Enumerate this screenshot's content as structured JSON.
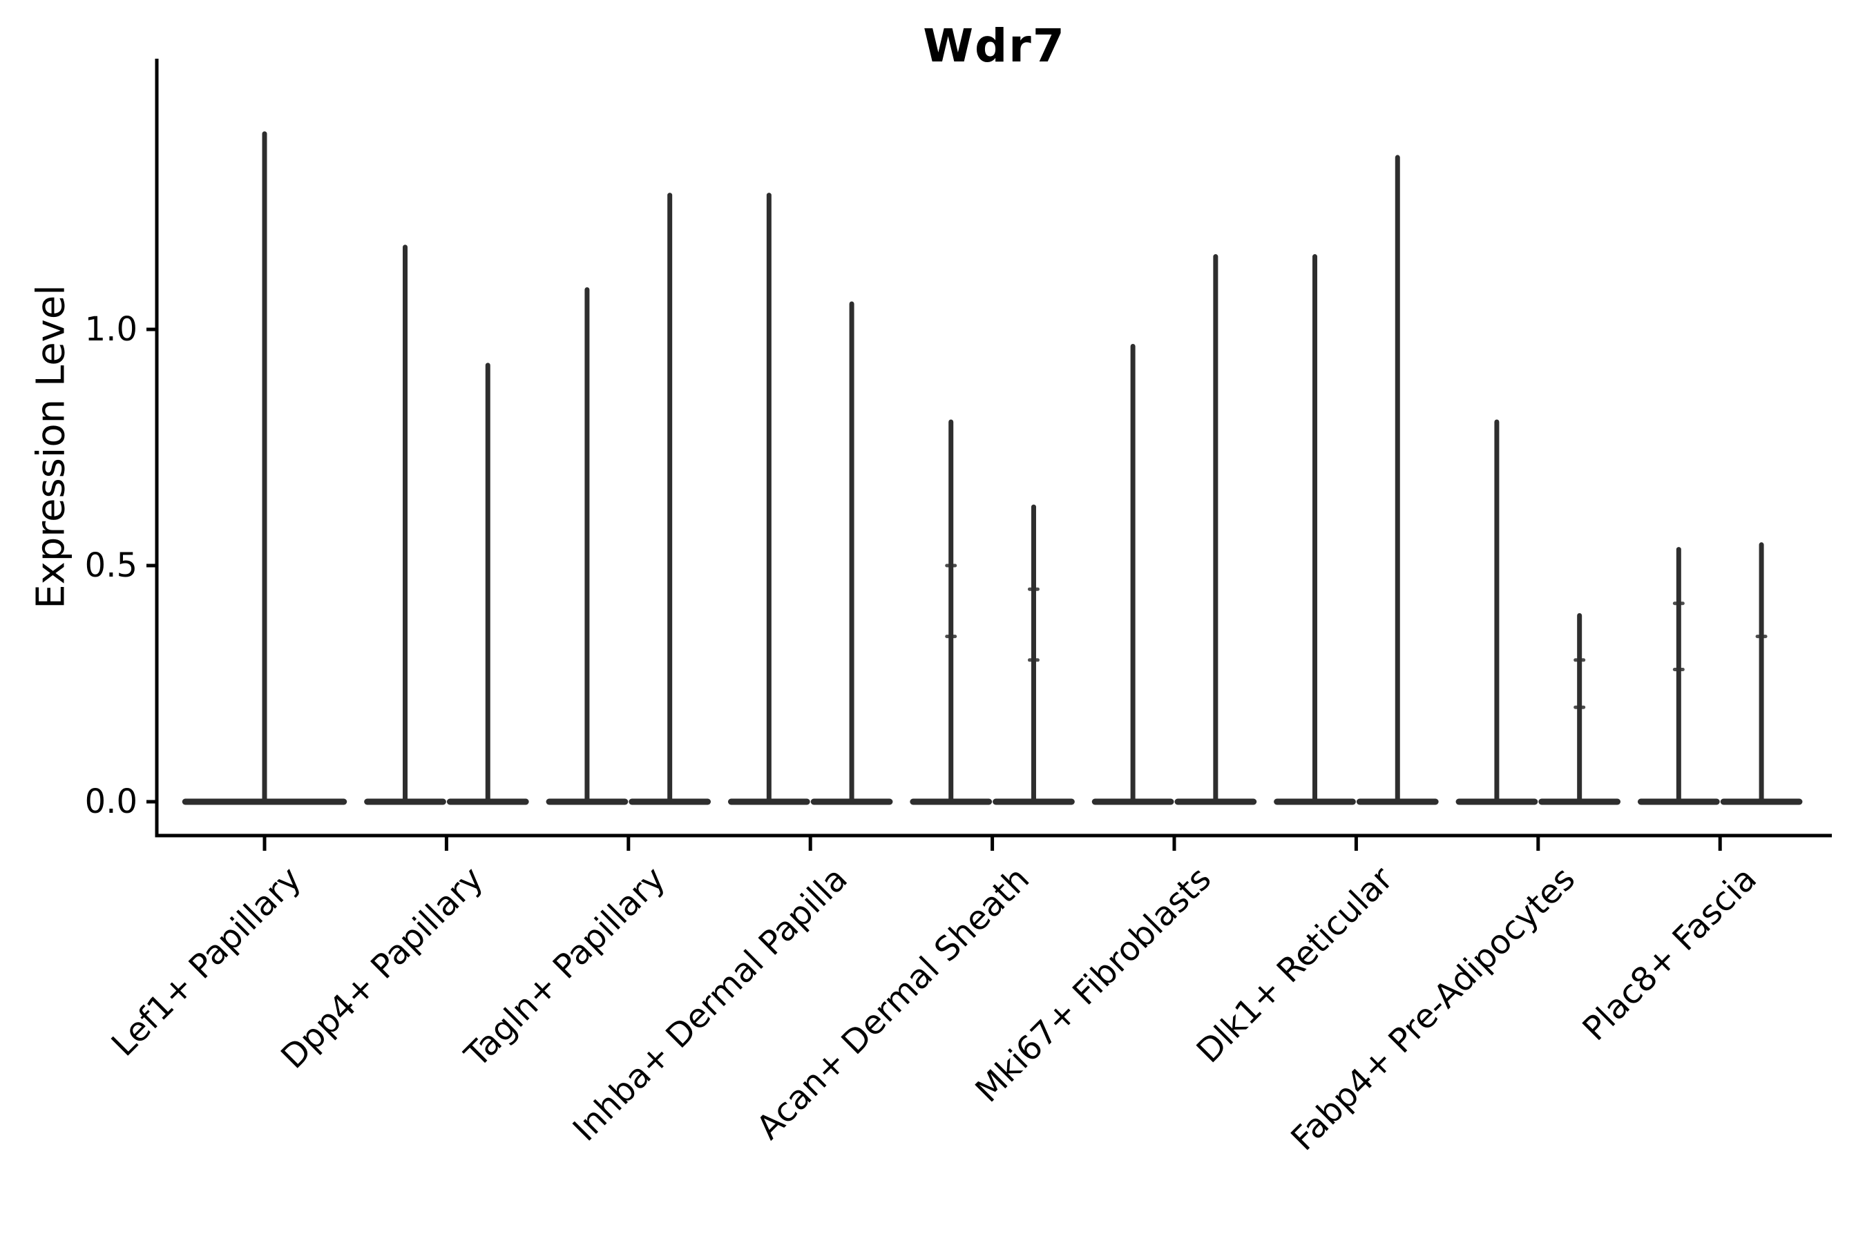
{
  "chart_data": {
    "type": "violin",
    "title": "Wdr7",
    "ylabel": "Expression Level",
    "xlabel": "",
    "grid": false,
    "legend": "none",
    "ylim": [
      -0.07,
      1.57
    ],
    "yticks": [
      {
        "value": 0.0,
        "label": "0.0"
      },
      {
        "value": 0.5,
        "label": "0.5"
      },
      {
        "value": 1.0,
        "label": "1.0"
      }
    ],
    "x_axis_note": "9 cell-type categories; first category has one full-width violin, all others have two side-by-side violins; violins are collapsed to a flat bar at 0 with a thin density spike up to the max expression value",
    "categories": [
      {
        "label": "Lef1+ Papillary",
        "violins": [
          {
            "max": 1.42,
            "points": []
          }
        ]
      },
      {
        "label": "Dpp4+ Papillary",
        "violins": [
          {
            "max": 1.18,
            "points": []
          },
          {
            "max": 0.93,
            "points": []
          }
        ]
      },
      {
        "label": "Tagln+ Papillary",
        "violins": [
          {
            "max": 1.09,
            "points": []
          },
          {
            "max": 1.29,
            "points": []
          }
        ]
      },
      {
        "label": "Inhba+ Dermal Papilla",
        "violins": [
          {
            "max": 1.29,
            "points": []
          },
          {
            "max": 1.06,
            "points": []
          }
        ]
      },
      {
        "label": "Acan+ Dermal Sheath",
        "violins": [
          {
            "max": 0.81,
            "points": [
              0.5,
              0.35
            ]
          },
          {
            "max": 0.63,
            "points": [
              0.45,
              0.3
            ]
          }
        ]
      },
      {
        "label": "Mki67+ Fibroblasts",
        "violins": [
          {
            "max": 0.97,
            "points": []
          },
          {
            "max": 1.16,
            "points": []
          }
        ]
      },
      {
        "label": "Dlk1+ Reticular",
        "violins": [
          {
            "max": 1.16,
            "points": []
          },
          {
            "max": 1.37,
            "points": []
          }
        ]
      },
      {
        "label": "Fabp4+ Pre-Adipocytes",
        "violins": [
          {
            "max": 0.81,
            "points": []
          },
          {
            "max": 0.4,
            "points": [
              0.3,
              0.2
            ]
          }
        ]
      },
      {
        "label": "Plac8+ Fascia",
        "violins": [
          {
            "max": 0.54,
            "points": [
              0.42,
              0.28
            ]
          },
          {
            "max": 0.55,
            "points": [
              0.35
            ]
          }
        ]
      }
    ],
    "colors": {
      "violin": "#2e2e2e",
      "axis": "#000000",
      "text": "#000000",
      "background": "#ffffff"
    }
  }
}
